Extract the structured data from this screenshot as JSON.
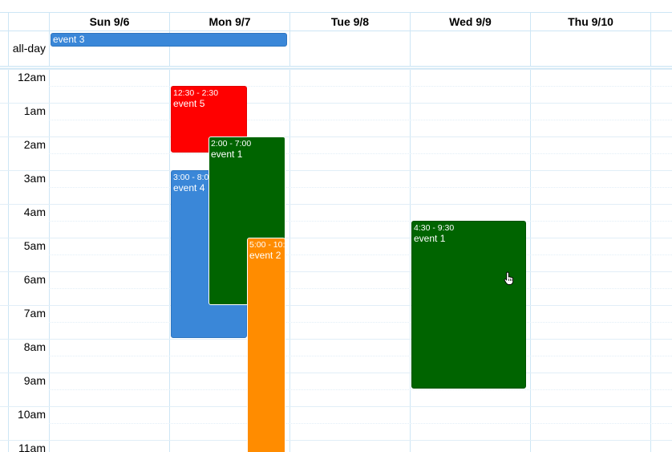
{
  "header": {
    "days": [
      "Sun 9/6",
      "Mon 9/7",
      "Tue 9/8",
      "Wed 9/9",
      "Thu 9/10"
    ]
  },
  "allday": {
    "label": "all-day",
    "event": {
      "title": "event 3",
      "color": "#3a87d8"
    }
  },
  "times": [
    "12am",
    "1am",
    "2am",
    "3am",
    "4am",
    "5am",
    "6am",
    "7am",
    "8am",
    "9am",
    "10am",
    "11am"
  ],
  "events": {
    "event5": {
      "time": "12:30 - 2:30",
      "title": "event 5",
      "color": "#ff0000"
    },
    "event1_mon": {
      "time": "2:00 - 7:00",
      "title": "event 1",
      "color": "#006400"
    },
    "event4": {
      "time": "3:00 - 8:00",
      "title": "event 4",
      "color": "#3a87d8"
    },
    "event2": {
      "time": "5:00 - 10:",
      "title": "event 2",
      "color": "#ff8c00"
    },
    "event1_wed": {
      "time": "4:30 - 9:30",
      "title": "event 1",
      "color": "#006400"
    }
  }
}
